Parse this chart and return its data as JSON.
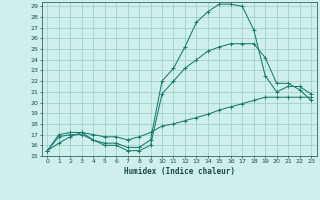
{
  "xlabel": "Humidex (Indice chaleur)",
  "bg_color": "#cff0ea",
  "grid_color": "#99ccc4",
  "line_color": "#1a7a6e",
  "xlim": [
    -0.5,
    23.5
  ],
  "ylim": [
    15,
    29.4
  ],
  "xticks": [
    0,
    1,
    2,
    3,
    4,
    5,
    6,
    7,
    8,
    9,
    10,
    11,
    12,
    13,
    14,
    15,
    16,
    17,
    18,
    19,
    20,
    21,
    22,
    23
  ],
  "yticks": [
    15,
    16,
    17,
    18,
    19,
    20,
    21,
    22,
    23,
    24,
    25,
    26,
    27,
    28,
    29
  ],
  "line1_x": [
    0,
    1,
    2,
    3,
    4,
    5,
    6,
    7,
    8,
    9,
    10,
    11,
    12,
    13,
    14,
    15,
    16,
    17,
    18,
    19,
    20,
    21,
    22,
    23
  ],
  "line1_y": [
    15.5,
    17.0,
    17.2,
    17.2,
    16.5,
    16.2,
    16.2,
    15.8,
    15.8,
    16.5,
    22.0,
    23.2,
    25.2,
    27.5,
    28.5,
    29.2,
    29.2,
    29.0,
    26.8,
    22.5,
    21.0,
    21.5,
    21.5,
    20.8
  ],
  "line2_x": [
    0,
    1,
    2,
    3,
    4,
    5,
    6,
    7,
    8,
    9,
    10,
    11,
    12,
    13,
    14,
    15,
    16,
    17,
    18,
    19,
    20,
    21,
    22,
    23
  ],
  "line2_y": [
    15.5,
    16.8,
    17.0,
    17.0,
    16.5,
    16.0,
    16.0,
    15.5,
    15.5,
    16.0,
    20.8,
    22.0,
    23.2,
    24.0,
    24.8,
    25.2,
    25.5,
    25.5,
    25.5,
    24.2,
    21.8,
    21.8,
    21.2,
    20.2
  ],
  "line3_x": [
    0,
    1,
    2,
    3,
    4,
    5,
    6,
    7,
    8,
    9,
    10,
    11,
    12,
    13,
    14,
    15,
    16,
    17,
    18,
    19,
    20,
    21,
    22,
    23
  ],
  "line3_y": [
    15.5,
    16.2,
    16.8,
    17.2,
    17.0,
    16.8,
    16.8,
    16.5,
    16.8,
    17.2,
    17.8,
    18.0,
    18.3,
    18.6,
    18.9,
    19.3,
    19.6,
    19.9,
    20.2,
    20.5,
    20.5,
    20.5,
    20.5,
    20.5
  ]
}
